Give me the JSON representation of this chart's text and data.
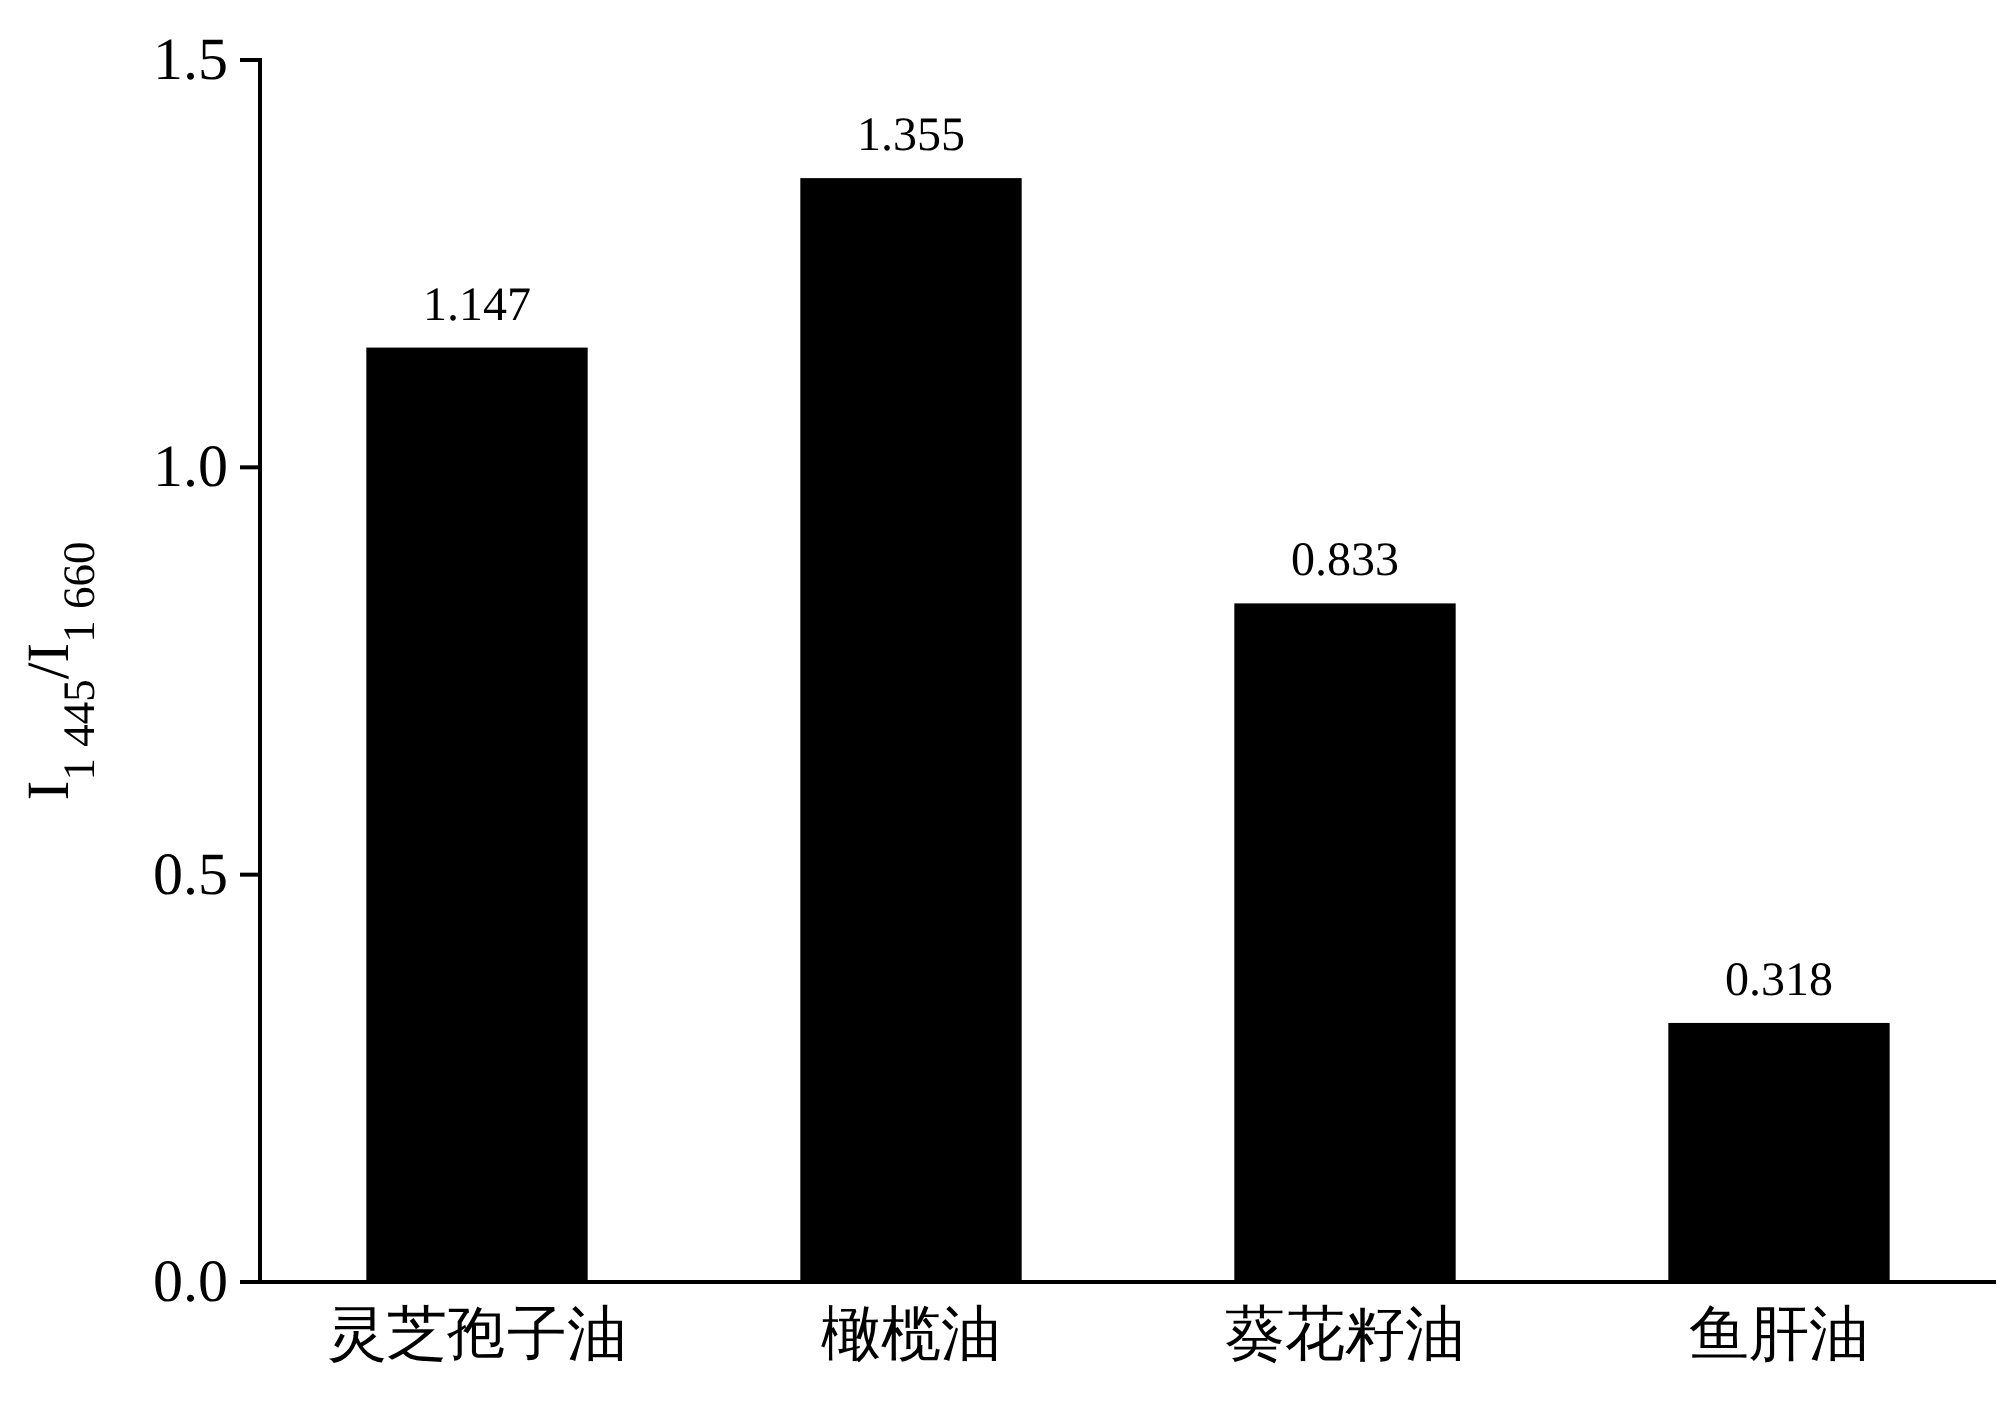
{
  "chart_data": {
    "type": "bar",
    "ylabel": "I$_{1 445}$/I$_{1 660}$",
    "categories": [
      "灵芝孢子油",
      "橄榄油",
      "葵花籽油",
      "鱼肝油"
    ],
    "values": [
      1.147,
      1.355,
      0.833,
      0.318
    ],
    "color": "#000000",
    "ylim": [
      0,
      1.5
    ],
    "yticks": [
      {
        "value": 0,
        "label": "0.0"
      },
      {
        "value": 0.5,
        "label": "0.5"
      },
      {
        "value": 1,
        "label": "1.0"
      },
      {
        "value": 1.5,
        "label": "1.5"
      }
    ],
    "data_labels": true,
    "grid": false
  }
}
